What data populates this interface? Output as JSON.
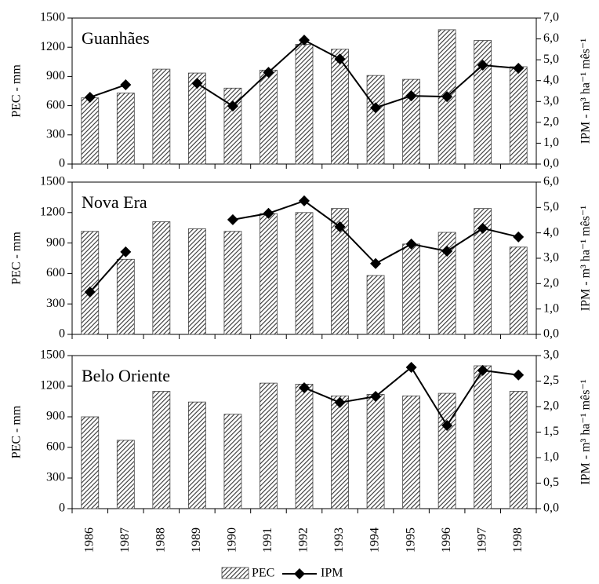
{
  "chart_data": [
    {
      "type": "bar",
      "title": "Guanhães",
      "ylabel": "PEC - mm",
      "y2label": "IPM - m³ ha⁻¹ mês⁻¹",
      "ylim": [
        0,
        1500
      ],
      "yticks": [
        0,
        300,
        600,
        900,
        1200,
        1500
      ],
      "y2lim": [
        0,
        7
      ],
      "y2ticks": [
        {
          "value": 0,
          "label": "0,0"
        },
        {
          "value": 1,
          "label": "1,0"
        },
        {
          "value": 2,
          "label": "2,0"
        },
        {
          "value": 3,
          "label": "3,0"
        },
        {
          "value": 4,
          "label": "4,0"
        },
        {
          "value": 5,
          "label": "5,0"
        },
        {
          "value": 6,
          "label": "6,0"
        },
        {
          "value": 7,
          "label": "7,0"
        }
      ],
      "series": [
        {
          "color": "#444444",
          "values": [
            680,
            730,
            975,
            935,
            780,
            965,
            1230,
            1180,
            910,
            870,
            1380,
            1270,
            1000
          ]
        },
        {
          "color": "#000000",
          "axis": "y2",
          "values": [
            3.2,
            3.8,
            null,
            3.87,
            2.78,
            4.4,
            5.94,
            5.04,
            2.7,
            3.27,
            3.23,
            4.74,
            4.59
          ]
        }
      ]
    },
    {
      "type": "bar",
      "title": "Nova Era",
      "ylabel": "PEC - mm",
      "y2label": "IPM - m³ ha⁻¹ mês⁻¹",
      "ylim": [
        0,
        1500
      ],
      "yticks": [
        0,
        300,
        600,
        900,
        1200,
        1500
      ],
      "y2lim": [
        0,
        6
      ],
      "y2ticks": [
        {
          "value": 0,
          "label": "0,0"
        },
        {
          "value": 1,
          "label": "1,0"
        },
        {
          "value": 2,
          "label": "2,0"
        },
        {
          "value": 3,
          "label": "3,0"
        },
        {
          "value": 4,
          "label": "4,0"
        },
        {
          "value": 5,
          "label": "5,0"
        },
        {
          "value": 6,
          "label": "6,0"
        }
      ],
      "series": [
        {
          "color": "#444444",
          "values": [
            1015,
            740,
            1110,
            1040,
            1015,
            1190,
            1200,
            1240,
            580,
            890,
            1005,
            1240,
            860
          ]
        },
        {
          "color": "#000000",
          "axis": "y2",
          "values": [
            1.67,
            3.25,
            null,
            null,
            4.52,
            4.77,
            5.26,
            4.24,
            2.79,
            3.56,
            3.28,
            4.18,
            3.84
          ]
        }
      ]
    },
    {
      "type": "bar",
      "title": "Belo Oriente",
      "ylabel": "PEC - mm",
      "y2label": "IPM - m³ ha⁻¹ mês⁻¹",
      "categories": [
        "1986",
        "1987",
        "1988",
        "1989",
        "1990",
        "1991",
        "1992",
        "1993",
        "1994",
        "1995",
        "1996",
        "1997",
        "1998"
      ],
      "ylim": [
        0,
        1500
      ],
      "yticks": [
        0,
        300,
        600,
        900,
        1200,
        1500
      ],
      "y2lim": [
        0,
        3
      ],
      "y2ticks": [
        {
          "value": 0,
          "label": "0,0"
        },
        {
          "value": 0.5,
          "label": "0,5"
        },
        {
          "value": 1,
          "label": "1,0"
        },
        {
          "value": 1.5,
          "label": "1,5"
        },
        {
          "value": 2,
          "label": "2,0"
        },
        {
          "value": 2.5,
          "label": "2,5"
        },
        {
          "value": 3,
          "label": "3,0"
        }
      ],
      "series": [
        {
          "name": "PEC",
          "color": "#444444",
          "values": [
            900,
            670,
            1150,
            1045,
            925,
            1230,
            1220,
            1105,
            1120,
            1105,
            1130,
            1400,
            1150
          ]
        },
        {
          "name": "IPM",
          "color": "#000000",
          "axis": "y2",
          "values": [
            null,
            null,
            null,
            null,
            null,
            null,
            2.37,
            2.08,
            2.2,
            2.77,
            1.63,
            2.71,
            2.62
          ]
        }
      ]
    }
  ]
}
